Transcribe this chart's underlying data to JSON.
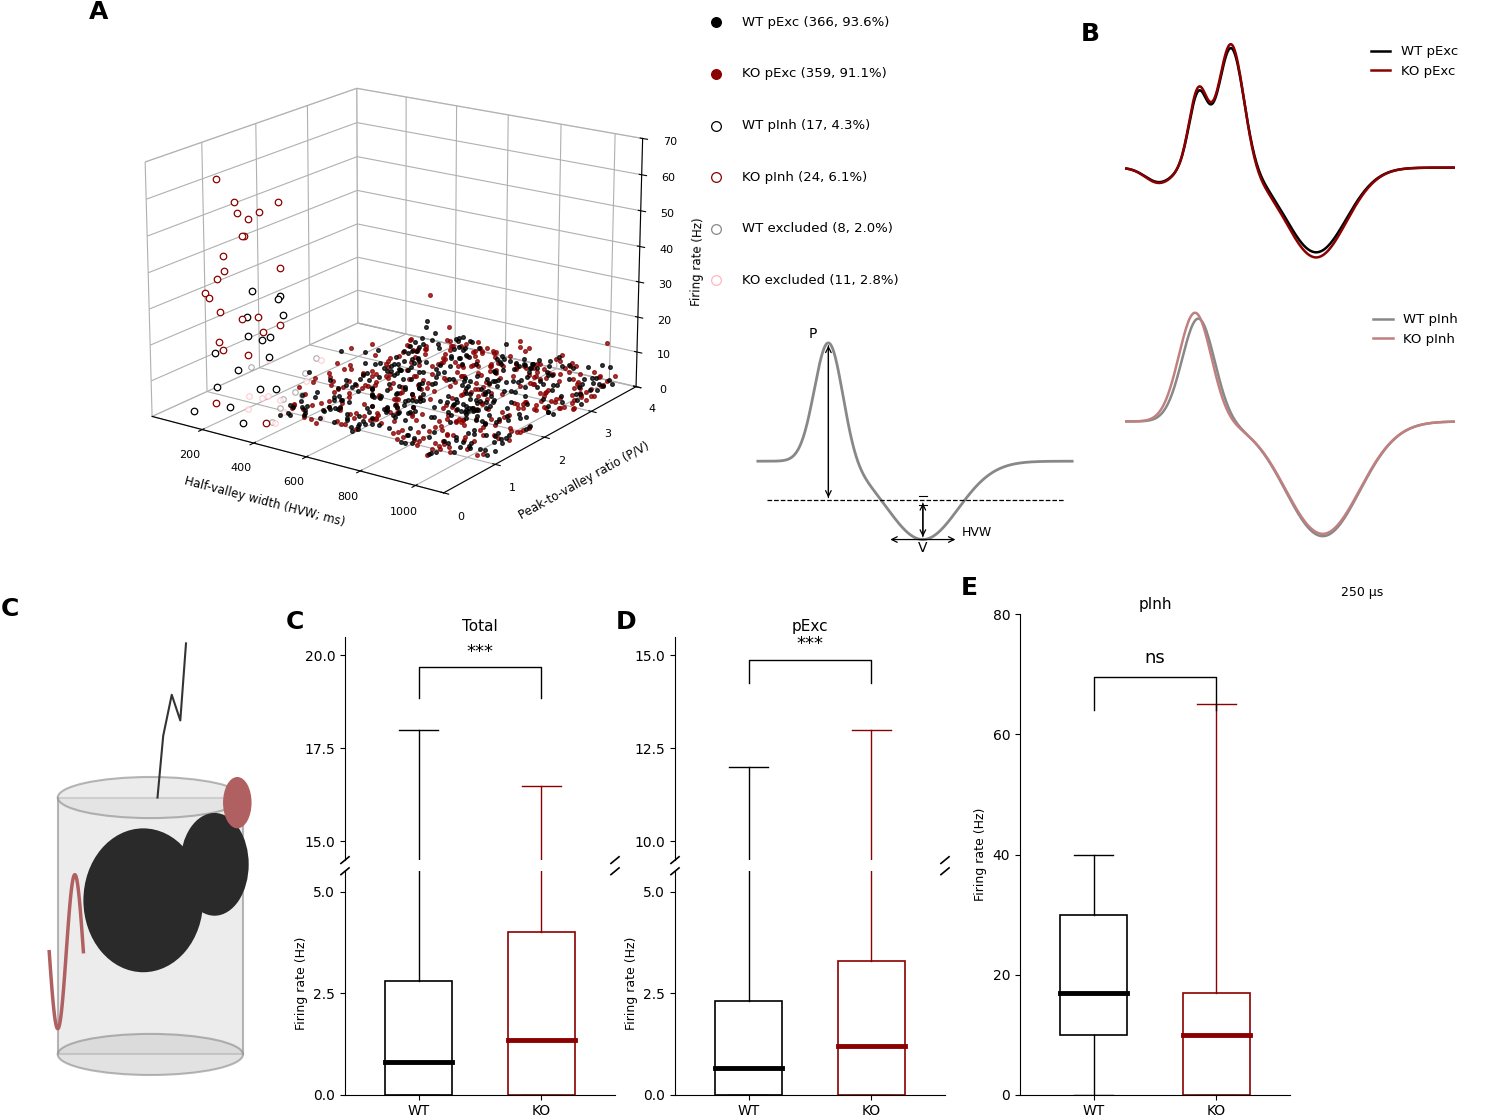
{
  "panel_A": {
    "xlabel": "Half-valley width (HVW; ms)",
    "ylabel": "Peak-to-valley ratio (P/V)",
    "zlabel": "Firing rate (Hz)",
    "xlim": [
      0,
      1100
    ],
    "ylim": [
      0,
      4
    ],
    "zlim": [
      0,
      70
    ],
    "xticks": [
      200,
      400,
      600,
      800,
      1000
    ],
    "yticks": [
      0,
      1,
      2,
      3,
      4
    ],
    "zticks": [
      0,
      10,
      20,
      30,
      40,
      50,
      60,
      70
    ],
    "legend_labels": [
      "WT pExc (366, 93.6%)",
      "KO pExc (359, 91.1%)",
      "WT pInh (17, 4.3%)",
      "KO pInh (24, 6.1%)",
      "WT excluded (8, 2.0%)",
      "KO excluded (11, 2.8%)"
    ]
  },
  "panel_B": {
    "scale_bar": "250 μs"
  },
  "panel_C": {
    "title": "Total",
    "ylabel": "Firing rate (Hz)",
    "panel_label": "C",
    "WT": {
      "whisker_low": 0.0,
      "q1": 0.0,
      "median": 0.8,
      "q3": 2.8,
      "whisker_high": 18.0
    },
    "KO": {
      "whisker_low": 0.0,
      "q1": 0.0,
      "median": 1.35,
      "q3": 4.0,
      "whisker_high": 16.5
    },
    "yticks_lower": [
      0.0,
      2.5,
      5.0
    ],
    "yticks_upper": [
      15.0,
      17.5,
      20.0
    ],
    "ylim_lower": [
      0,
      5.5
    ],
    "ylim_upper": [
      14.5,
      20.5
    ],
    "significance": "***"
  },
  "panel_D": {
    "title": "pExc",
    "ylabel": "Firing rate (Hz)",
    "panel_label": "D",
    "WT": {
      "whisker_low": 0.0,
      "q1": 0.0,
      "median": 0.65,
      "q3": 2.3,
      "whisker_high": 12.0
    },
    "KO": {
      "whisker_low": 0.0,
      "q1": 0.0,
      "median": 1.2,
      "q3": 3.3,
      "whisker_high": 13.0
    },
    "yticks_lower": [
      0.0,
      2.5,
      5.0
    ],
    "yticks_upper": [
      10.0,
      12.5,
      15.0
    ],
    "ylim_lower": [
      0,
      5.5
    ],
    "ylim_upper": [
      9.5,
      15.5
    ],
    "significance": "***"
  },
  "panel_E": {
    "title": "pInh",
    "ylabel": "Firing rate (Hz)",
    "panel_label": "E",
    "WT": {
      "whisker_low": 0.0,
      "q1": 10.0,
      "median": 17.0,
      "q3": 30.0,
      "whisker_high": 40.0
    },
    "KO": {
      "whisker_low": 0.0,
      "q1": 0.0,
      "median": 10.0,
      "q3": 17.0,
      "whisker_high": 65.0
    },
    "yticks": [
      0,
      20,
      40,
      60,
      80
    ],
    "ylim": [
      0,
      80
    ],
    "significance": "ns"
  },
  "colors": {
    "WT_pExc": "#000000",
    "KO_pExc": "#8B0000",
    "WT_pInh": "#000000",
    "KO_pInh": "#8B0000",
    "WT_excluded": "#808080",
    "KO_excluded": "#FFB6C1",
    "waveform_pInh_WT": "#808080",
    "waveform_pInh_KO": "#C08080"
  }
}
